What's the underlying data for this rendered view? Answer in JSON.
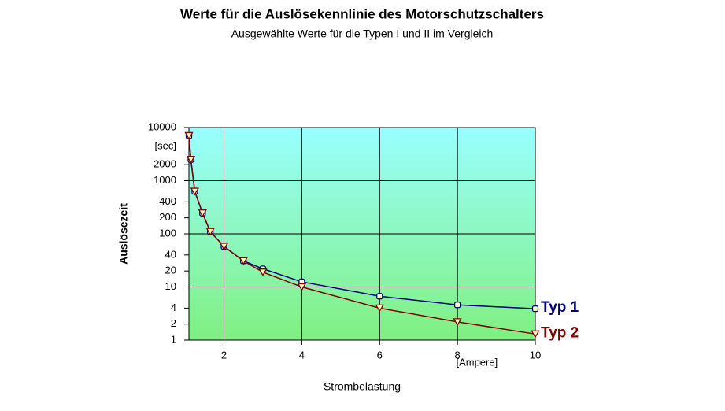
{
  "chart_data": {
    "type": "line",
    "title": "Werte für die Auslösekennlinie des Motorschutzschalters",
    "subtitle": "Ausgewählte Werte für die Typen I und II im Vergleich",
    "x_label": "Strombelastung",
    "y_label": "Auslösezeit",
    "x_unit": "[Ampere]",
    "y_unit": "[sec]",
    "x": [
      1.1,
      1.15,
      1.25,
      1.45,
      1.65,
      2,
      2.5,
      3,
      4,
      6,
      8,
      10
    ],
    "series": [
      {
        "name": "Typ 1",
        "color": "#000080",
        "marker": "square",
        "values": [
          7000,
          2500,
          630,
          245,
          110,
          58,
          31,
          22,
          12.5,
          6.7,
          4.6,
          3.9
        ]
      },
      {
        "name": "Typ 2",
        "color": "#800000",
        "marker": "triangle-down",
        "values": [
          7000,
          2500,
          630,
          245,
          110,
          58,
          31,
          19,
          10,
          4,
          2.2,
          1.3
        ]
      }
    ],
    "xlim": [
      1.1,
      10
    ],
    "xticks": [
      2,
      4,
      6,
      8,
      10
    ],
    "ylim": [
      1,
      10000
    ],
    "yticks": [
      1,
      2,
      4,
      10,
      20,
      40,
      100,
      200,
      400,
      1000,
      2000,
      10000
    ],
    "log_y": true,
    "grid": true,
    "legend": "right"
  }
}
